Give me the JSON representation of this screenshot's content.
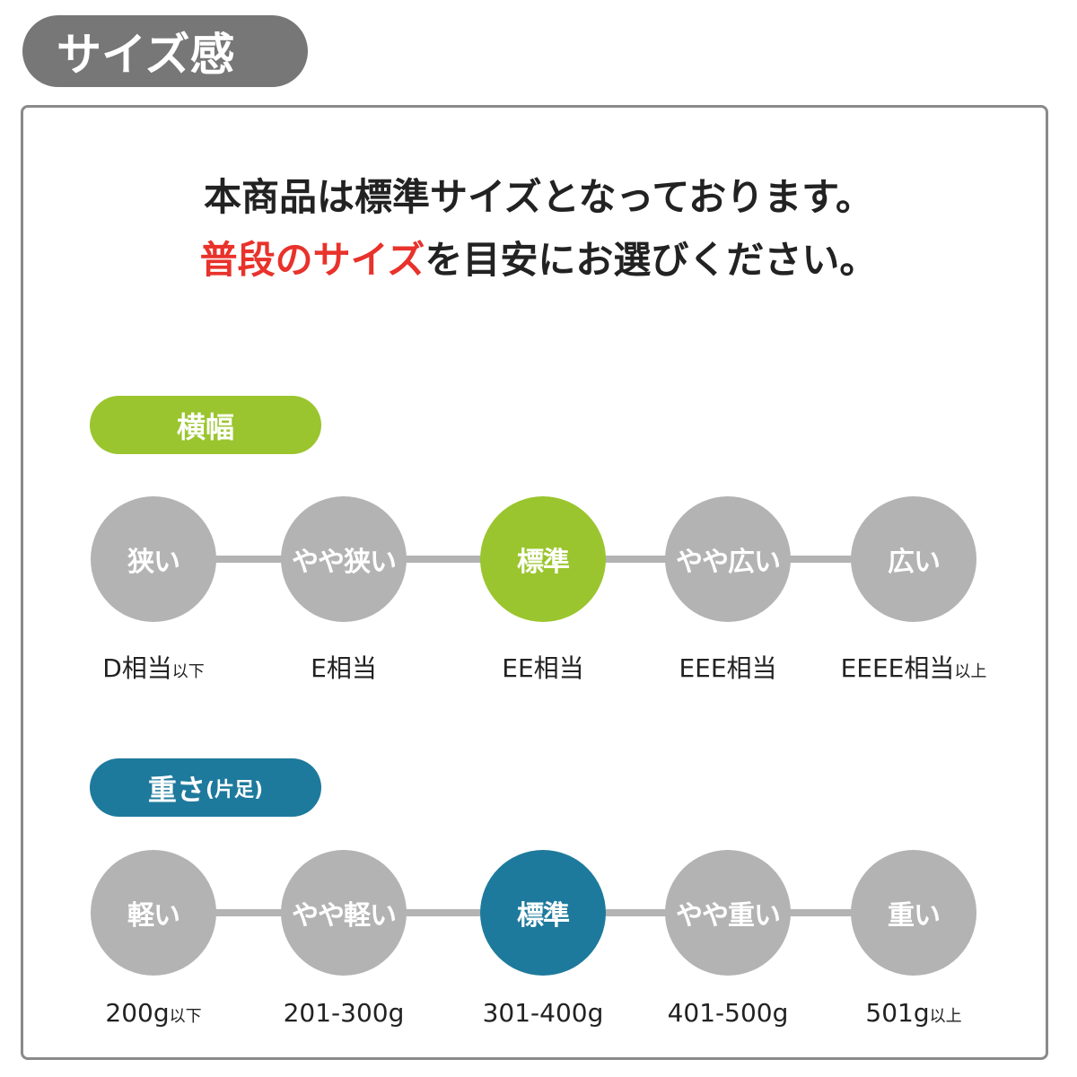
{
  "title": "サイズ感",
  "intro": {
    "line1": "本商品は標準サイズとなっております。",
    "line2_highlight": "普段のサイズ",
    "line2_rest": "を目安にお選びください。"
  },
  "colors": {
    "width_accent": "#9ac52e",
    "weight_accent": "#1e7a9c",
    "inactive": "#b3b3b3",
    "highlight_text": "#e8322b"
  },
  "width": {
    "label": "横幅",
    "selected_index": 2,
    "steps": [
      {
        "name": "狭い",
        "value": "D相当",
        "suffix": "以下"
      },
      {
        "name": "やや狭い",
        "value": "E相当",
        "suffix": ""
      },
      {
        "name": "標準",
        "value": "EE相当",
        "suffix": ""
      },
      {
        "name": "やや広い",
        "value": "EEE相当",
        "suffix": ""
      },
      {
        "name": "広い",
        "value": "EEEE相当",
        "suffix": "以上"
      }
    ]
  },
  "weight": {
    "label": "重さ",
    "label_note": "(片足)",
    "selected_index": 2,
    "steps": [
      {
        "name": "軽い",
        "value": "200g",
        "suffix": "以下"
      },
      {
        "name": "やや軽い",
        "value": "201-300g",
        "suffix": ""
      },
      {
        "name": "標準",
        "value": "301-400g",
        "suffix": ""
      },
      {
        "name": "やや重い",
        "value": "401-500g",
        "suffix": ""
      },
      {
        "name": "重い",
        "value": "501g",
        "suffix": "以上"
      }
    ]
  }
}
